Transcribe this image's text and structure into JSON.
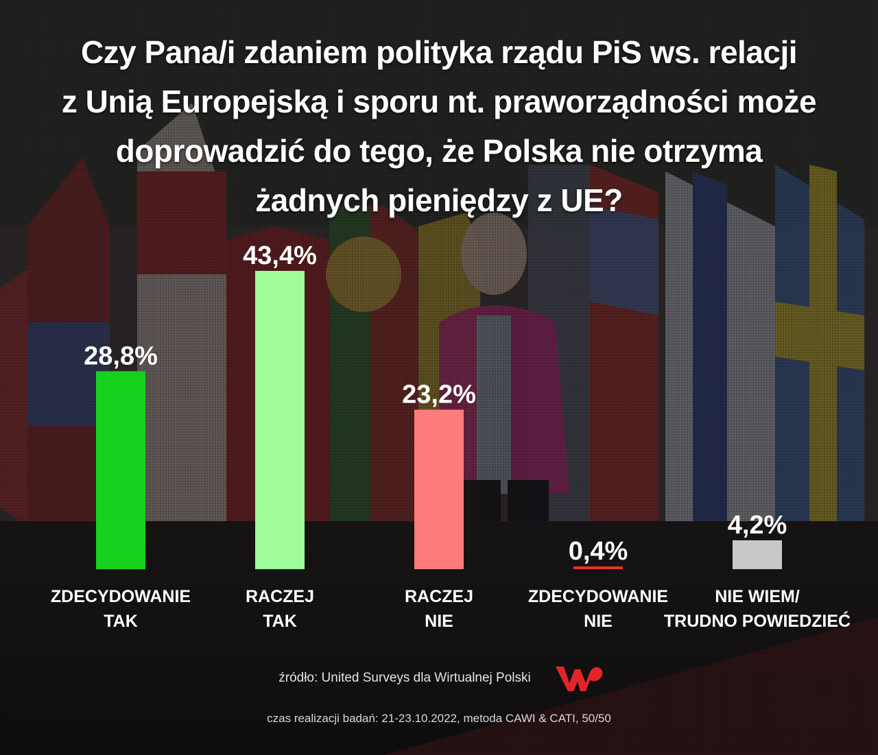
{
  "header": {
    "title_lines": [
      "Czy Pana/i zdaniem polityka rządu PiS ws. relacji",
      "z Unią Europejską i sporu nt. praworządności może",
      "doprowadzić do tego, że Polska nie otrzyma",
      "żadnych pieniędzy z UE?"
    ]
  },
  "chart_data": {
    "type": "bar",
    "title": "Czy Pana/i zdaniem polityka rządu PiS ws. relacji z Unią Europejską i sporu nt. praworządności może doprowadzić do tego, że Polska nie otrzyma żadnych pieniędzy z UE?",
    "categories": [
      [
        "ZDECYDOWANIE",
        "TAK"
      ],
      [
        "RACZEJ",
        "TAK"
      ],
      [
        "RACZEJ",
        "NIE"
      ],
      [
        "ZDECYDOWANIE",
        "NIE"
      ],
      [
        "NIE WIEM/",
        "TRUDNO POWIEDZIEĆ"
      ]
    ],
    "values": [
      28.8,
      43.4,
      23.2,
      0.4,
      4.2
    ],
    "value_labels": [
      "28,8%",
      "43,4%",
      "23,2%",
      "0,4%",
      "4,2%"
    ],
    "colors": [
      "#16d11c",
      "#9dfb9a",
      "#ff7c7a",
      "#e8302a",
      "#c8c8c8"
    ],
    "ylim": [
      0,
      43.4
    ],
    "grid": false,
    "legend": "none"
  },
  "footer": {
    "source": "źródło: United Surveys dla Wirtualnej Polski",
    "method": "czas realizacji badań: 21-23.10.2022, metoda CAWI & CATI, 50/50",
    "logo_color": "#e3242b"
  }
}
